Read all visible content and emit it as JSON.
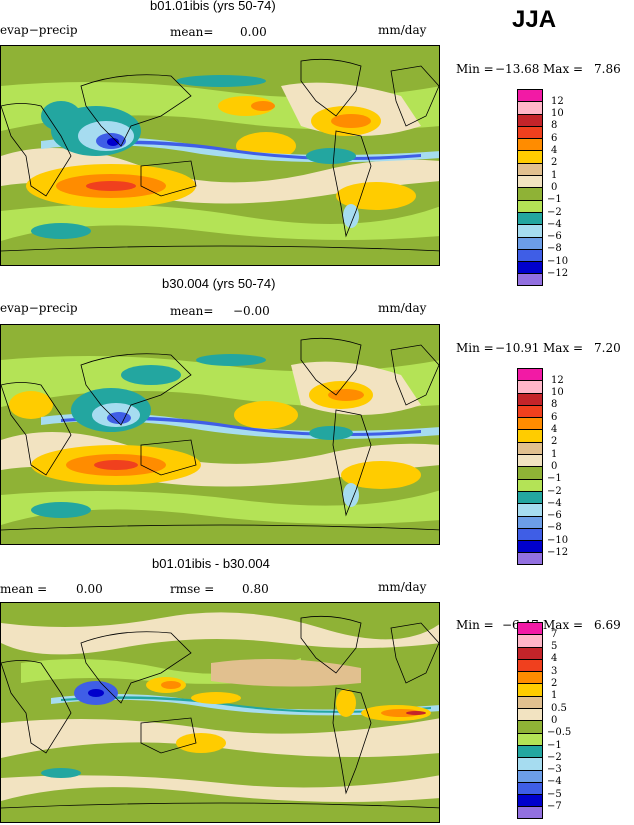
{
  "season": "JJA",
  "units": "mm/day",
  "panels": [
    {
      "title": "b01.01ibis (yrs 50-74)",
      "left_label": "evap−precip",
      "stat_label": "mean=",
      "stat_value": "0.00",
      "stat2_label": "",
      "stat2_value": "",
      "min_label": "Min =",
      "min_value": "−13.68",
      "max_label": "Max =",
      "max_value": "7.86",
      "legend_levels": [
        "12",
        "10",
        "8",
        "6",
        "4",
        "2",
        "1",
        "0",
        "−1",
        "−2",
        "−4",
        "−6",
        "−8",
        "−10",
        "−12"
      ]
    },
    {
      "title": "b30.004 (yrs 50-74)",
      "left_label": "evap−precip",
      "stat_label": "mean=",
      "stat_value": "−0.00",
      "stat2_label": "",
      "stat2_value": "",
      "min_label": "Min =",
      "min_value": "−10.91",
      "max_label": "Max =",
      "max_value": "7.20",
      "legend_levels": [
        "12",
        "10",
        "8",
        "6",
        "4",
        "2",
        "1",
        "0",
        "−1",
        "−2",
        "−4",
        "−6",
        "−8",
        "−10",
        "−12"
      ]
    },
    {
      "title": "b01.01ibis - b30.004",
      "left_label": "mean =",
      "stat_label": "",
      "stat_value": "0.00",
      "stat2_label": "rmse =",
      "stat2_value": "0.80",
      "min_label": "Min =",
      "min_value": "−6.47",
      "max_label": "Max =",
      "max_value": "6.69",
      "legend_levels": [
        "7",
        "5",
        "4",
        "3",
        "2",
        "1",
        "0.5",
        "0",
        "−0.5",
        "−1",
        "−2",
        "−3",
        "−4",
        "−5",
        "−7"
      ]
    }
  ],
  "colors": {
    "legend": [
      "#f21aa5",
      "#ffb6c8",
      "#c4242a",
      "#f0401e",
      "#ff8c00",
      "#ffcc00",
      "#e1c08f",
      "#f2e3c1",
      "#8fb236",
      "#b4e356",
      "#23a6a0",
      "#a6dcf0",
      "#6c9ee8",
      "#3f5ee6",
      "#0000cc",
      "#9270e0"
    ],
    "ocean_green": "#8fb236",
    "light_green": "#b4e356",
    "tan": "#f2e3c1",
    "beige": "#e1c08f",
    "yellow": "#ffcc00",
    "orange": "#ff8c00",
    "teal": "#23a6a0",
    "light_blue": "#a6dcf0",
    "blue": "#3f5ee6",
    "navy": "#0000cc"
  }
}
